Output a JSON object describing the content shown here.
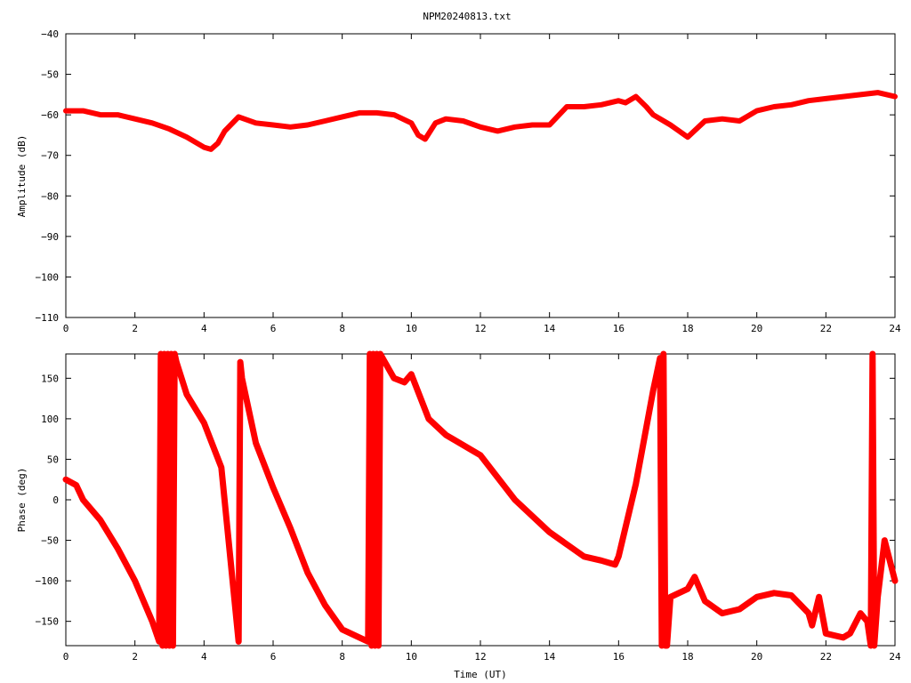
{
  "chart_data": [
    {
      "type": "line",
      "title": "NPM20240813.txt",
      "xlabel": "",
      "ylabel": "Amplitude (dB)",
      "xlim": [
        0,
        24
      ],
      "ylim": [
        -110,
        -40
      ],
      "xticks": [
        "0",
        "2",
        "4",
        "6",
        "8",
        "10",
        "12",
        "14",
        "16",
        "18",
        "20",
        "22",
        "24"
      ],
      "yticks": [
        "-40",
        "-50",
        "-60",
        "-70",
        "-80",
        "-90",
        "-100",
        "-110"
      ],
      "grid": false,
      "legend": "none",
      "color": "#ff0000",
      "series": [
        {
          "x": [
            0,
            0.5,
            1,
            1.5,
            2,
            2.5,
            3,
            3.5,
            4,
            4.2,
            4.4,
            4.6,
            5,
            5.5,
            6,
            6.5,
            7,
            7.5,
            8,
            8.5,
            9,
            9.5,
            10,
            10.2,
            10.4,
            10.7,
            11,
            11.5,
            12,
            12.5,
            13,
            13.5,
            14,
            14.5,
            15,
            15.5,
            16,
            16.2,
            16.5,
            16.8,
            17,
            17.5,
            18,
            18.5,
            19,
            19.5,
            20,
            20.5,
            21,
            21.5,
            22,
            22.5,
            23,
            23.5,
            24
          ],
          "y": [
            -59,
            -59,
            -60,
            -60,
            -61,
            -62,
            -63.5,
            -65.5,
            -68,
            -68.5,
            -67,
            -64,
            -60.5,
            -62,
            -62.5,
            -63,
            -62.5,
            -61.5,
            -60.5,
            -59.5,
            -59.5,
            -60,
            -62,
            -65,
            -66,
            -62,
            -61,
            -61.5,
            -63,
            -64,
            -63,
            -62.5,
            -62.5,
            -58,
            -58,
            -57.5,
            -56.5,
            -57,
            -55.5,
            -58,
            -60,
            -62.5,
            -65.5,
            -61.5,
            -61,
            -61.5,
            -59,
            -58,
            -57.5,
            -56.5,
            -56,
            -55.5,
            -55,
            -54.5,
            -55.5
          ]
        }
      ]
    },
    {
      "type": "line",
      "title": "",
      "xlabel": "Time (UT)",
      "ylabel": "Phase (deg)",
      "xlim": [
        0,
        24
      ],
      "ylim": [
        -180,
        180
      ],
      "xticks": [
        "0",
        "2",
        "4",
        "6",
        "8",
        "10",
        "12",
        "14",
        "16",
        "18",
        "20",
        "22",
        "24"
      ],
      "yticks": [
        "150",
        "100",
        "50",
        "0",
        "-50",
        "-100",
        "-150"
      ],
      "grid": false,
      "legend": "none",
      "color": "#ff0000",
      "series": [
        {
          "x": [
            0,
            0.3,
            0.5,
            1,
            1.5,
            2,
            2.5,
            2.7,
            2.75,
            2.8,
            2.85,
            2.9,
            2.95,
            3,
            3.05,
            3.1,
            3.15,
            3.2,
            3.5,
            4,
            4.5,
            5,
            5.05,
            5.1,
            5.5,
            6,
            6.5,
            7,
            7.5,
            8,
            8.5,
            8.75,
            8.8,
            8.85,
            8.9,
            8.95,
            9,
            9.05,
            9.1,
            9.5,
            9.8,
            10,
            10.5,
            11,
            12,
            13,
            14,
            15,
            15.5,
            15.9,
            16,
            16.5,
            17,
            17.2,
            17.25,
            17.3,
            17.35,
            17.4,
            17.5,
            18,
            18.2,
            18.5,
            19,
            19.5,
            20,
            20.5,
            21,
            21.5,
            21.6,
            21.8,
            22,
            22.5,
            22.7,
            23,
            23.2,
            23.3,
            23.35,
            23.4,
            23.5,
            23.7,
            24
          ],
          "y": [
            25,
            18,
            0,
            -25,
            -60,
            -100,
            -150,
            -175,
            180,
            -180,
            180,
            -180,
            180,
            -180,
            180,
            -180,
            180,
            170,
            130,
            95,
            40,
            -175,
            170,
            150,
            70,
            15,
            -35,
            -90,
            -130,
            -160,
            -170,
            -175,
            180,
            -180,
            180,
            -180,
            180,
            -180,
            180,
            150,
            145,
            155,
            100,
            80,
            55,
            0,
            -40,
            -70,
            -75,
            -80,
            -70,
            20,
            135,
            175,
            -180,
            180,
            -180,
            -180,
            -120,
            -110,
            -95,
            -125,
            -140,
            -135,
            -120,
            -115,
            -118,
            -140,
            -155,
            -120,
            -165,
            -170,
            -165,
            -140,
            -150,
            -180,
            180,
            -180,
            -120,
            -50,
            -100
          ]
        }
      ]
    }
  ]
}
